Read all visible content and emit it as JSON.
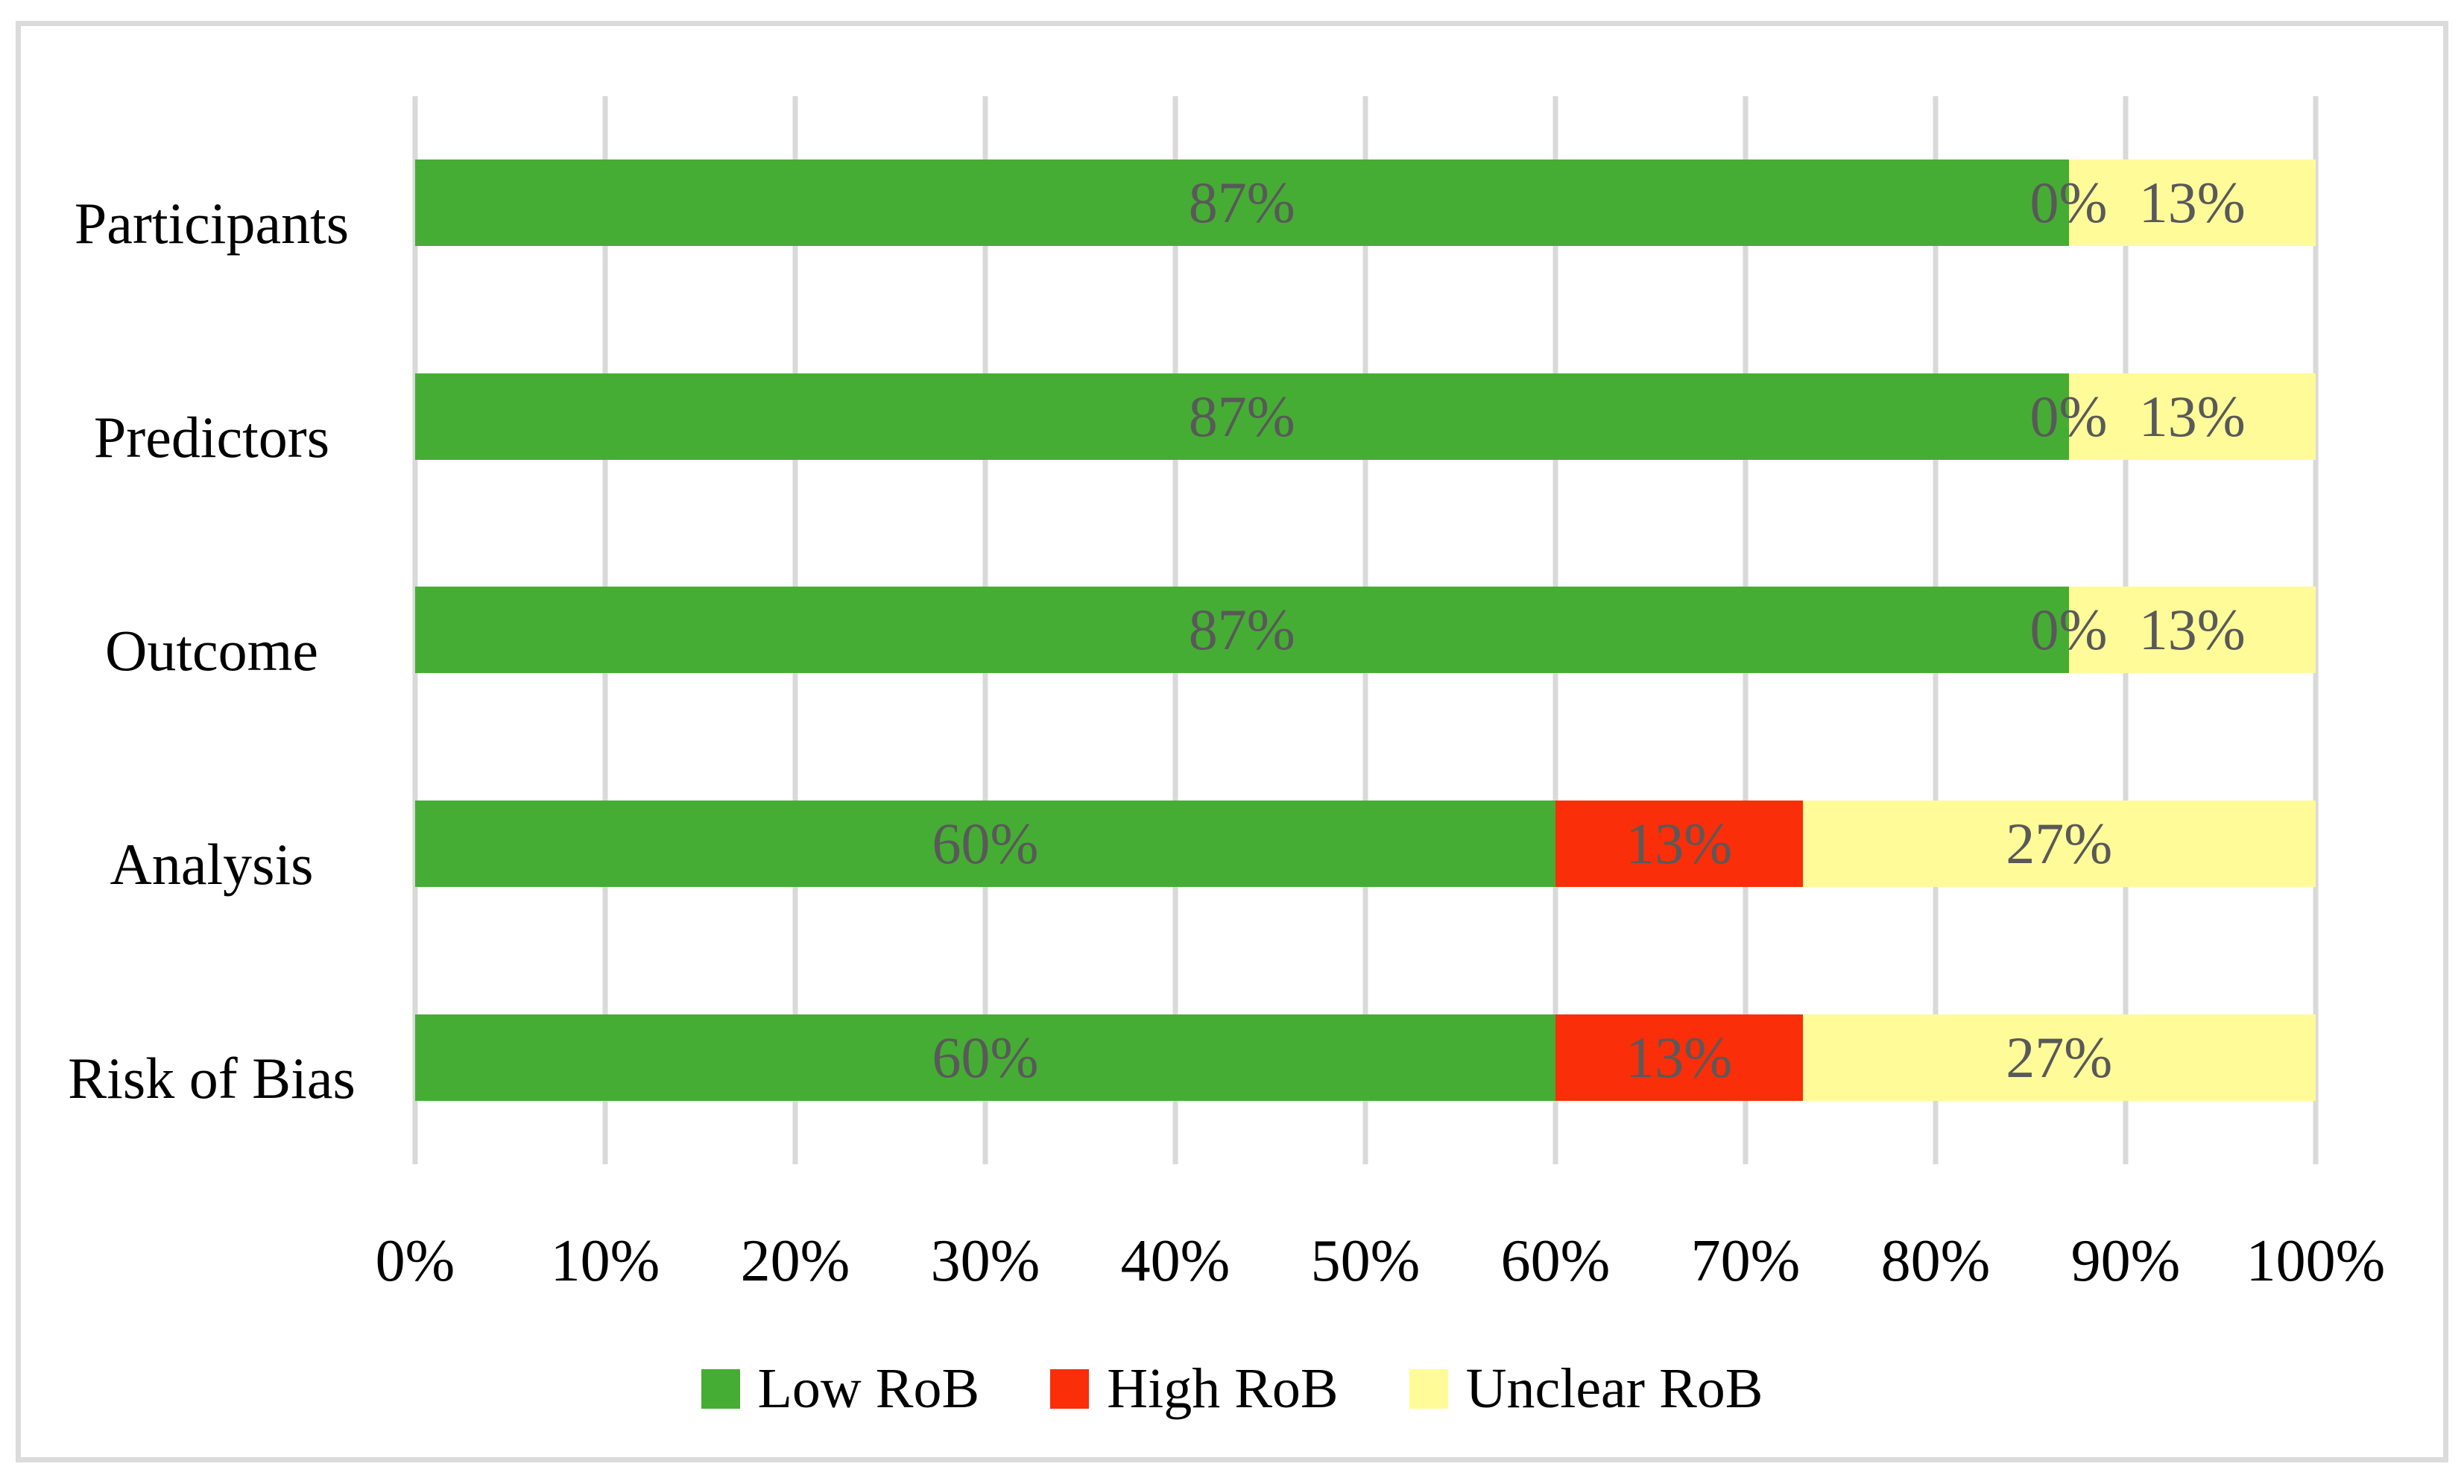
{
  "chart_data": {
    "type": "bar",
    "orientation": "horizontal-stacked",
    "title": "",
    "xlabel": "",
    "ylabel": "",
    "xlim": [
      0,
      100
    ],
    "grid": "vertical",
    "gridline_color": "#D9D9D9",
    "frame_border_color": "#DBDBDB",
    "bar_label_color": "#595959",
    "categories": [
      "Participants",
      "Predictors",
      "Outcome",
      "Analysis",
      "Risk of Bias"
    ],
    "series": [
      {
        "name": "Low RoB",
        "color": "#46AD34",
        "values": [
          87,
          87,
          87,
          60,
          60
        ]
      },
      {
        "name": "High RoB",
        "color": "#FA2E08",
        "values": [
          0,
          0,
          0,
          13,
          13
        ]
      },
      {
        "name": "Unclear RoB",
        "color": "#FFFB99",
        "values": [
          13,
          13,
          13,
          27,
          27
        ]
      }
    ],
    "bar_labels": [
      [
        "87%",
        "0%",
        "13%"
      ],
      [
        "87%",
        "0%",
        "13%"
      ],
      [
        "87%",
        "0%",
        "13%"
      ],
      [
        "60%",
        "13%",
        "27%"
      ],
      [
        "60%",
        "13%",
        "27%"
      ]
    ],
    "x_ticks": [
      "0%",
      "10%",
      "20%",
      "30%",
      "40%",
      "50%",
      "60%",
      "70%",
      "80%",
      "90%",
      "100%"
    ],
    "legend_position": "bottom"
  }
}
